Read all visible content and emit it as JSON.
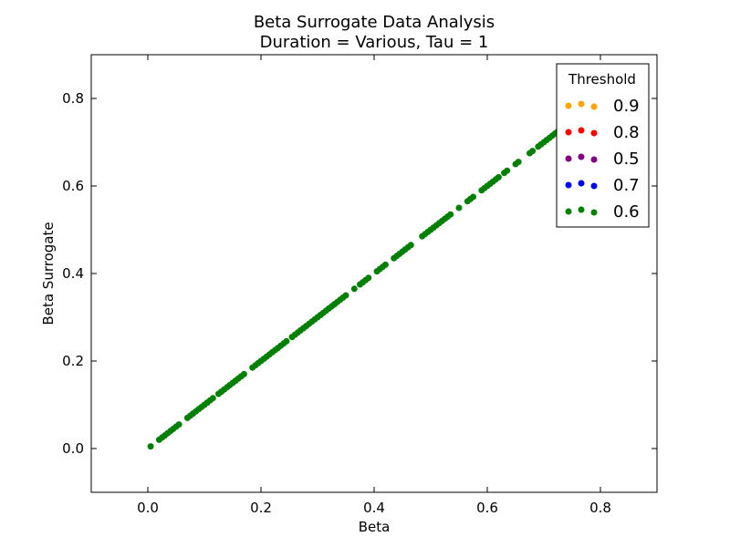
{
  "chart_data": {
    "type": "scatter",
    "title": "Beta Surrogate Data Analysis",
    "subtitle": "Duration = Various, Tau = 1",
    "xlabel": "Beta",
    "ylabel": "Beta Surrogate",
    "xlim": [
      -0.1,
      0.9
    ],
    "ylim": [
      -0.1,
      0.9
    ],
    "xticks": [
      "0.0",
      "0.2",
      "0.4",
      "0.6",
      "0.8"
    ],
    "yticks": [
      "0.0",
      "0.2",
      "0.4",
      "0.6",
      "0.8"
    ],
    "grid": false,
    "legend": {
      "title": "Threshold",
      "placement": "top-right"
    },
    "series": [
      {
        "name": "0.9",
        "color": "#ffa500",
        "points": []
      },
      {
        "name": "0.8",
        "color": "#ff0000",
        "points": []
      },
      {
        "name": "0.5",
        "color": "#800080",
        "points": []
      },
      {
        "name": "0.7",
        "color": "#0000ff",
        "points": []
      },
      {
        "name": "0.6",
        "color": "#008000",
        "points": [
          [
            0.005,
            0.005
          ],
          [
            0.02,
            0.02
          ],
          [
            0.025,
            0.025
          ],
          [
            0.03,
            0.03
          ],
          [
            0.035,
            0.035
          ],
          [
            0.04,
            0.04
          ],
          [
            0.045,
            0.045
          ],
          [
            0.05,
            0.05
          ],
          [
            0.055,
            0.055
          ],
          [
            0.07,
            0.07
          ],
          [
            0.075,
            0.075
          ],
          [
            0.08,
            0.08
          ],
          [
            0.085,
            0.085
          ],
          [
            0.09,
            0.09
          ],
          [
            0.095,
            0.095
          ],
          [
            0.1,
            0.1
          ],
          [
            0.105,
            0.105
          ],
          [
            0.11,
            0.11
          ],
          [
            0.115,
            0.115
          ],
          [
            0.125,
            0.125
          ],
          [
            0.13,
            0.13
          ],
          [
            0.135,
            0.135
          ],
          [
            0.14,
            0.14
          ],
          [
            0.145,
            0.145
          ],
          [
            0.15,
            0.15
          ],
          [
            0.155,
            0.155
          ],
          [
            0.16,
            0.16
          ],
          [
            0.165,
            0.165
          ],
          [
            0.17,
            0.17
          ],
          [
            0.185,
            0.185
          ],
          [
            0.19,
            0.19
          ],
          [
            0.195,
            0.195
          ],
          [
            0.2,
            0.2
          ],
          [
            0.205,
            0.205
          ],
          [
            0.21,
            0.21
          ],
          [
            0.215,
            0.215
          ],
          [
            0.22,
            0.22
          ],
          [
            0.225,
            0.225
          ],
          [
            0.23,
            0.23
          ],
          [
            0.235,
            0.235
          ],
          [
            0.24,
            0.24
          ],
          [
            0.245,
            0.245
          ],
          [
            0.255,
            0.255
          ],
          [
            0.26,
            0.26
          ],
          [
            0.265,
            0.265
          ],
          [
            0.27,
            0.27
          ],
          [
            0.275,
            0.275
          ],
          [
            0.28,
            0.28
          ],
          [
            0.285,
            0.285
          ],
          [
            0.29,
            0.29
          ],
          [
            0.295,
            0.295
          ],
          [
            0.3,
            0.3
          ],
          [
            0.305,
            0.305
          ],
          [
            0.31,
            0.31
          ],
          [
            0.315,
            0.315
          ],
          [
            0.32,
            0.32
          ],
          [
            0.325,
            0.325
          ],
          [
            0.33,
            0.33
          ],
          [
            0.335,
            0.335
          ],
          [
            0.34,
            0.34
          ],
          [
            0.345,
            0.345
          ],
          [
            0.35,
            0.35
          ],
          [
            0.365,
            0.365
          ],
          [
            0.375,
            0.375
          ],
          [
            0.38,
            0.38
          ],
          [
            0.385,
            0.385
          ],
          [
            0.39,
            0.39
          ],
          [
            0.405,
            0.405
          ],
          [
            0.41,
            0.41
          ],
          [
            0.415,
            0.415
          ],
          [
            0.42,
            0.42
          ],
          [
            0.435,
            0.435
          ],
          [
            0.44,
            0.44
          ],
          [
            0.445,
            0.445
          ],
          [
            0.45,
            0.45
          ],
          [
            0.455,
            0.455
          ],
          [
            0.46,
            0.46
          ],
          [
            0.465,
            0.465
          ],
          [
            0.485,
            0.485
          ],
          [
            0.49,
            0.49
          ],
          [
            0.495,
            0.495
          ],
          [
            0.5,
            0.5
          ],
          [
            0.505,
            0.505
          ],
          [
            0.51,
            0.51
          ],
          [
            0.515,
            0.515
          ],
          [
            0.52,
            0.52
          ],
          [
            0.525,
            0.525
          ],
          [
            0.53,
            0.53
          ],
          [
            0.535,
            0.535
          ],
          [
            0.55,
            0.55
          ],
          [
            0.565,
            0.565
          ],
          [
            0.57,
            0.57
          ],
          [
            0.575,
            0.575
          ],
          [
            0.59,
            0.59
          ],
          [
            0.595,
            0.595
          ],
          [
            0.6,
            0.6
          ],
          [
            0.605,
            0.605
          ],
          [
            0.61,
            0.61
          ],
          [
            0.615,
            0.615
          ],
          [
            0.62,
            0.62
          ],
          [
            0.63,
            0.63
          ],
          [
            0.635,
            0.635
          ],
          [
            0.65,
            0.65
          ],
          [
            0.655,
            0.655
          ],
          [
            0.675,
            0.675
          ],
          [
            0.68,
            0.68
          ],
          [
            0.69,
            0.69
          ],
          [
            0.695,
            0.695
          ],
          [
            0.7,
            0.7
          ],
          [
            0.705,
            0.705
          ],
          [
            0.71,
            0.71
          ],
          [
            0.715,
            0.715
          ],
          [
            0.72,
            0.72
          ],
          [
            0.725,
            0.725
          ],
          [
            0.73,
            0.73
          ],
          [
            0.735,
            0.735
          ],
          [
            0.74,
            0.74
          ]
        ]
      }
    ]
  }
}
